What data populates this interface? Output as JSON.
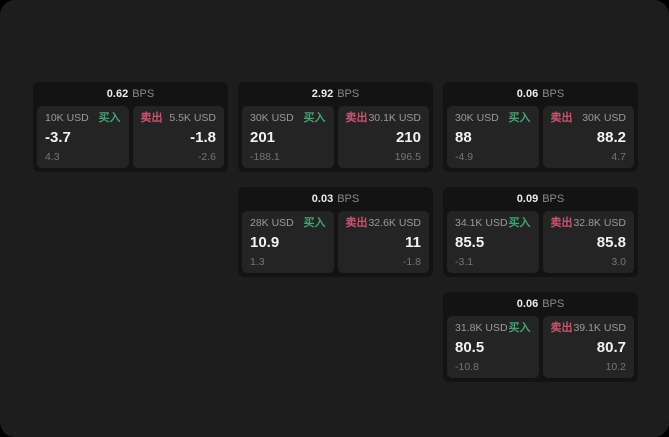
{
  "labels": {
    "buy": "买入",
    "sell": "卖出",
    "bps_unit": "BPS"
  },
  "colors": {
    "page_bg": "#1d1d1d",
    "card_bg": "#131313",
    "panel_bg": "#242424",
    "buy_green": "#3ea571",
    "sell_red": "#cc536c"
  },
  "cards": [
    {
      "bps": "0.62",
      "buy": {
        "size": "10K USD",
        "value": "-3.7",
        "sub": "4.3"
      },
      "sell": {
        "size": "5.5K USD",
        "value": "-1.8",
        "sub": "-2.6"
      }
    },
    {
      "bps": "2.92",
      "buy": {
        "size": "30K USD",
        "value": "201",
        "sub": "-188.1"
      },
      "sell": {
        "size": "30.1K USD",
        "value": "210",
        "sub": "196.5"
      }
    },
    {
      "bps": "0.06",
      "buy": {
        "size": "30K USD",
        "value": "88",
        "sub": "-4.9"
      },
      "sell": {
        "size": "30K USD",
        "value": "88.2",
        "sub": "4.7"
      }
    },
    {
      "bps": "0.03",
      "buy": {
        "size": "28K USD",
        "value": "10.9",
        "sub": "1.3"
      },
      "sell": {
        "size": "32.6K USD",
        "value": "11",
        "sub": "-1.8"
      }
    },
    {
      "bps": "0.09",
      "buy": {
        "size": "34.1K USD",
        "value": "85.5",
        "sub": "-3.1"
      },
      "sell": {
        "size": "32.8K USD",
        "value": "85.8",
        "sub": "3.0"
      }
    },
    {
      "bps": "0.06",
      "buy": {
        "size": "31.8K USD",
        "value": "80.5",
        "sub": "-10.8"
      },
      "sell": {
        "size": "39.1K USD",
        "value": "80.7",
        "sub": "10.2"
      }
    }
  ]
}
